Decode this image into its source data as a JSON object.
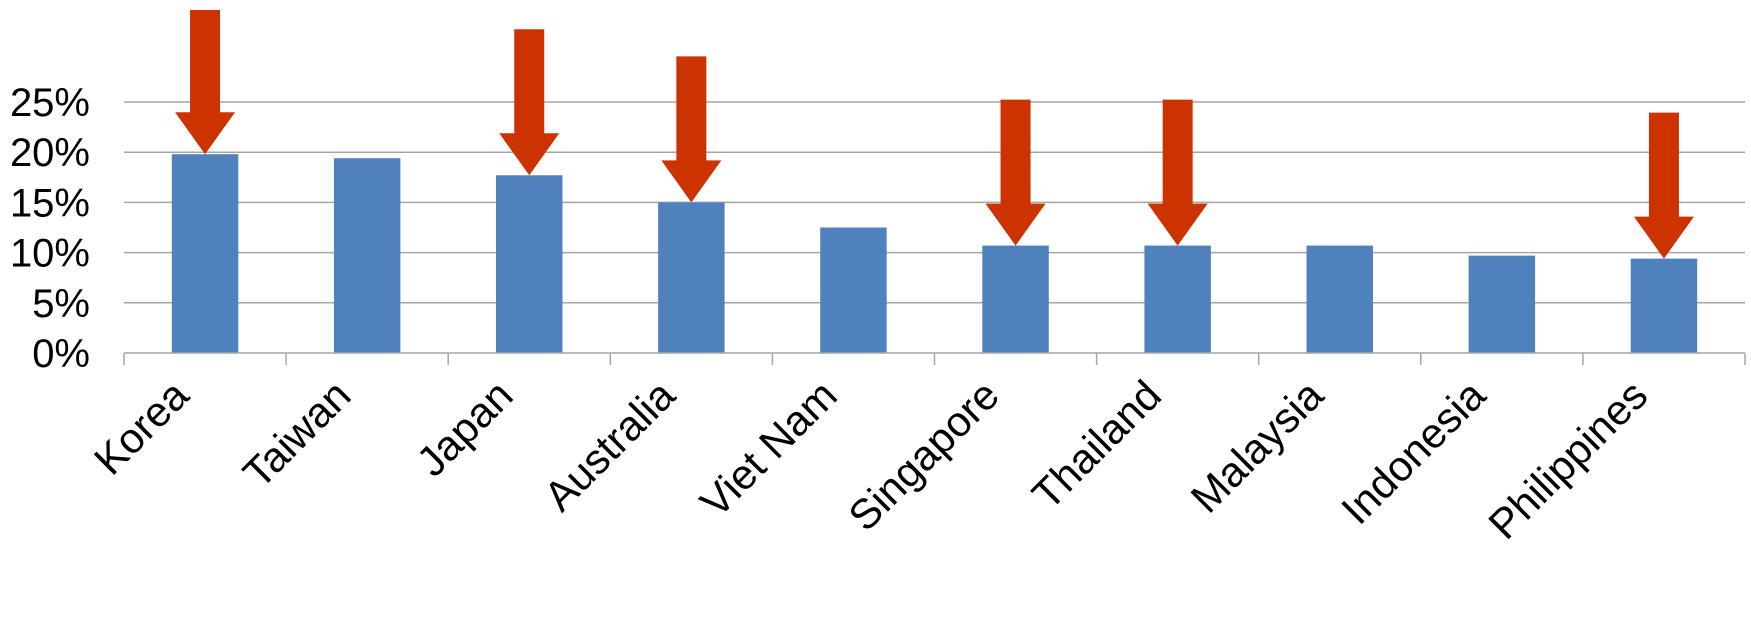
{
  "chart_data": {
    "type": "bar",
    "title": "",
    "xlabel": "",
    "ylabel": "",
    "categories": [
      "Korea",
      "Taiwan",
      "Japan",
      "Australia",
      "Viet Nam",
      "Singapore",
      "Thailand",
      "Malaysia",
      "Indonesia",
      "Philippines"
    ],
    "values": [
      19.8,
      19.4,
      17.7,
      15.0,
      12.5,
      10.7,
      10.7,
      10.7,
      9.7,
      9.4
    ],
    "yticks": [
      "0%",
      "5%",
      "10%",
      "15%",
      "20%",
      "25%"
    ],
    "ylim": [
      0,
      25
    ],
    "grid": true,
    "bar_color": "#4f81bd",
    "annotations": {
      "type": "down-arrow",
      "color": "#cc3300",
      "categories": [
        "Korea",
        "Japan",
        "Australia",
        "Singapore",
        "Thailand",
        "Philippines"
      ]
    }
  }
}
